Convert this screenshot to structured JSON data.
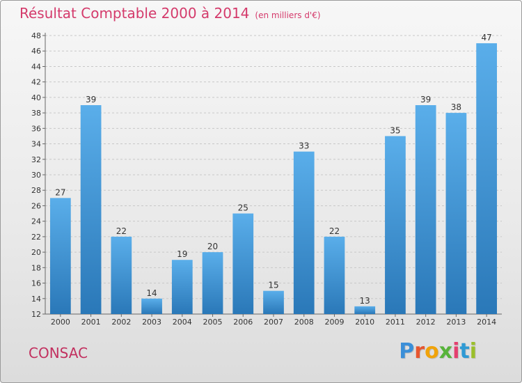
{
  "chart_data": {
    "type": "bar",
    "title": "Résultat Comptable 2000 à 2014",
    "subtitle": "(en milliers d'€)",
    "categories": [
      "2000",
      "2001",
      "2002",
      "2003",
      "2004",
      "2005",
      "2006",
      "2007",
      "2008",
      "2009",
      "2010",
      "2011",
      "2012",
      "2013",
      "2014"
    ],
    "values": [
      27,
      39,
      22,
      14,
      19,
      20,
      25,
      15,
      33,
      22,
      13,
      35,
      39,
      38,
      47
    ],
    "ylim": [
      12,
      48
    ],
    "yticks": [
      12,
      14,
      16,
      18,
      20,
      22,
      24,
      26,
      28,
      30,
      32,
      34,
      36,
      38,
      40,
      42,
      44,
      46,
      48
    ],
    "grid": true,
    "bar_color": "#3d94d8"
  },
  "footer": {
    "location": "CONSAC",
    "brand_letters": [
      "P",
      "r",
      "o",
      "x",
      "i",
      "t",
      "i"
    ],
    "brand_colors": [
      "#3b8fd8",
      "#e7562f",
      "#f0a30a",
      "#57b33a",
      "#e43f6f",
      "#2f9ad4",
      "#9bbf2a"
    ]
  }
}
